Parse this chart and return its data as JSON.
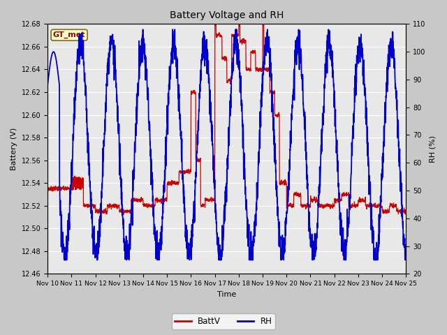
{
  "title": "Battery Voltage and RH",
  "xlabel": "Time",
  "ylabel_left": "Battery (V)",
  "ylabel_right": "RH (%)",
  "ylim_left": [
    12.46,
    12.68
  ],
  "ylim_right": [
    20,
    110
  ],
  "yticks_left": [
    12.46,
    12.48,
    12.5,
    12.52,
    12.54,
    12.56,
    12.58,
    12.6,
    12.62,
    12.64,
    12.66,
    12.68
  ],
  "yticks_right": [
    20,
    30,
    40,
    50,
    60,
    70,
    80,
    90,
    100,
    110
  ],
  "xtick_labels": [
    "Nov 10",
    "Nov 11",
    "Nov 12",
    "Nov 13",
    "Nov 14",
    "Nov 15",
    "Nov 16",
    "Nov 17",
    "Nov 18",
    "Nov 19",
    "Nov 20",
    "Nov 21",
    "Nov 22",
    "Nov 23",
    "Nov 24",
    "Nov 25"
  ],
  "label_box_text": "GT_met",
  "label_box_bg": "#ffffcc",
  "label_box_edge": "#8B6914",
  "label_box_text_color": "#8B0000",
  "batt_color": "#cc0000",
  "rh_color": "#0000cc",
  "fig_bg": "#c8c8c8",
  "plot_bg": "#e8e8e8",
  "grid_color": "#ffffff",
  "legend_batt": "BattV",
  "legend_rh": "RH",
  "figsize": [
    6.4,
    4.8
  ],
  "dpi": 100
}
